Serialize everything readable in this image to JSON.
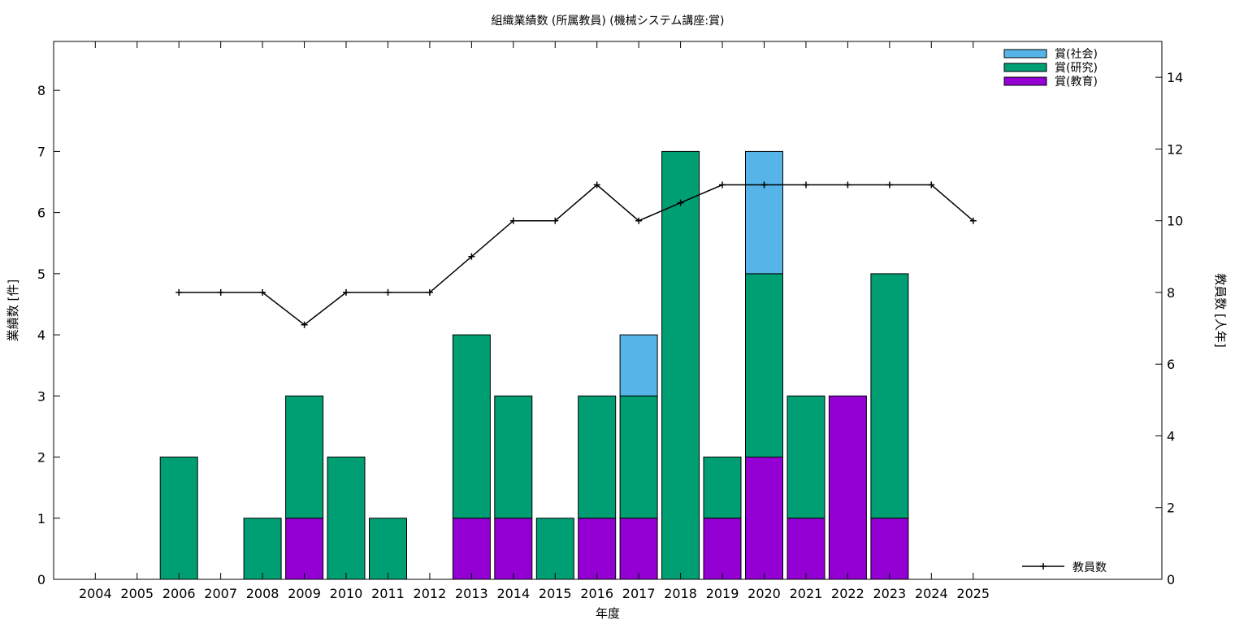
{
  "chart_data": {
    "type": "bar",
    "title": "組織業績数 (所属教員) (機械システム講座:賞)",
    "xlabel": "年度",
    "ylabel": "業績数 [件]",
    "y2label": "教員数 [人年]",
    "categories": [
      "2004",
      "2005",
      "2006",
      "2007",
      "2008",
      "2009",
      "2010",
      "2011",
      "2012",
      "2013",
      "2014",
      "2015",
      "2016",
      "2017",
      "2018",
      "2019",
      "2020",
      "2021",
      "2022",
      "2023",
      "2024",
      "2025"
    ],
    "ylim": [
      0,
      8.8
    ],
    "yticks": [
      0,
      1,
      2,
      3,
      4,
      5,
      6,
      7,
      8
    ],
    "y2lim": [
      0,
      15
    ],
    "y2ticks": [
      0,
      2,
      4,
      6,
      8,
      10,
      12,
      14
    ],
    "stacked": true,
    "legend_position": "top-right",
    "series": [
      {
        "name": "賞(教育)",
        "color": "#9400d3",
        "values": [
          0,
          0,
          0,
          0,
          0,
          1,
          0,
          0,
          0,
          1,
          1,
          0,
          1,
          1,
          0,
          1,
          2,
          1,
          3,
          1,
          0,
          0
        ]
      },
      {
        "name": "賞(研究)",
        "color": "#009e73",
        "values": [
          0,
          0,
          2,
          0,
          1,
          2,
          2,
          1,
          0,
          3,
          2,
          1,
          2,
          2,
          7,
          1,
          3,
          2,
          0,
          4,
          0,
          0
        ]
      },
      {
        "name": "賞(社会)",
        "color": "#56b4e9",
        "values": [
          0,
          0,
          0,
          0,
          0,
          0,
          0,
          0,
          0,
          0,
          0,
          0,
          0,
          1,
          0,
          0,
          2,
          0,
          0,
          0,
          0,
          0
        ]
      }
    ],
    "line_series": {
      "name": "教員数",
      "axis": "y2",
      "color": "#000000",
      "x": [
        "2006",
        "2007",
        "2008",
        "2009",
        "2010",
        "2011",
        "2012",
        "2013",
        "2014",
        "2015",
        "2016",
        "2017",
        "2018",
        "2019",
        "2020",
        "2021",
        "2022",
        "2023",
        "2024",
        "2025"
      ],
      "values": [
        8,
        8,
        8,
        7.1,
        8,
        8,
        8,
        9,
        10,
        10,
        11,
        10,
        10.5,
        11,
        11,
        11,
        11,
        11,
        11,
        10
      ]
    }
  }
}
